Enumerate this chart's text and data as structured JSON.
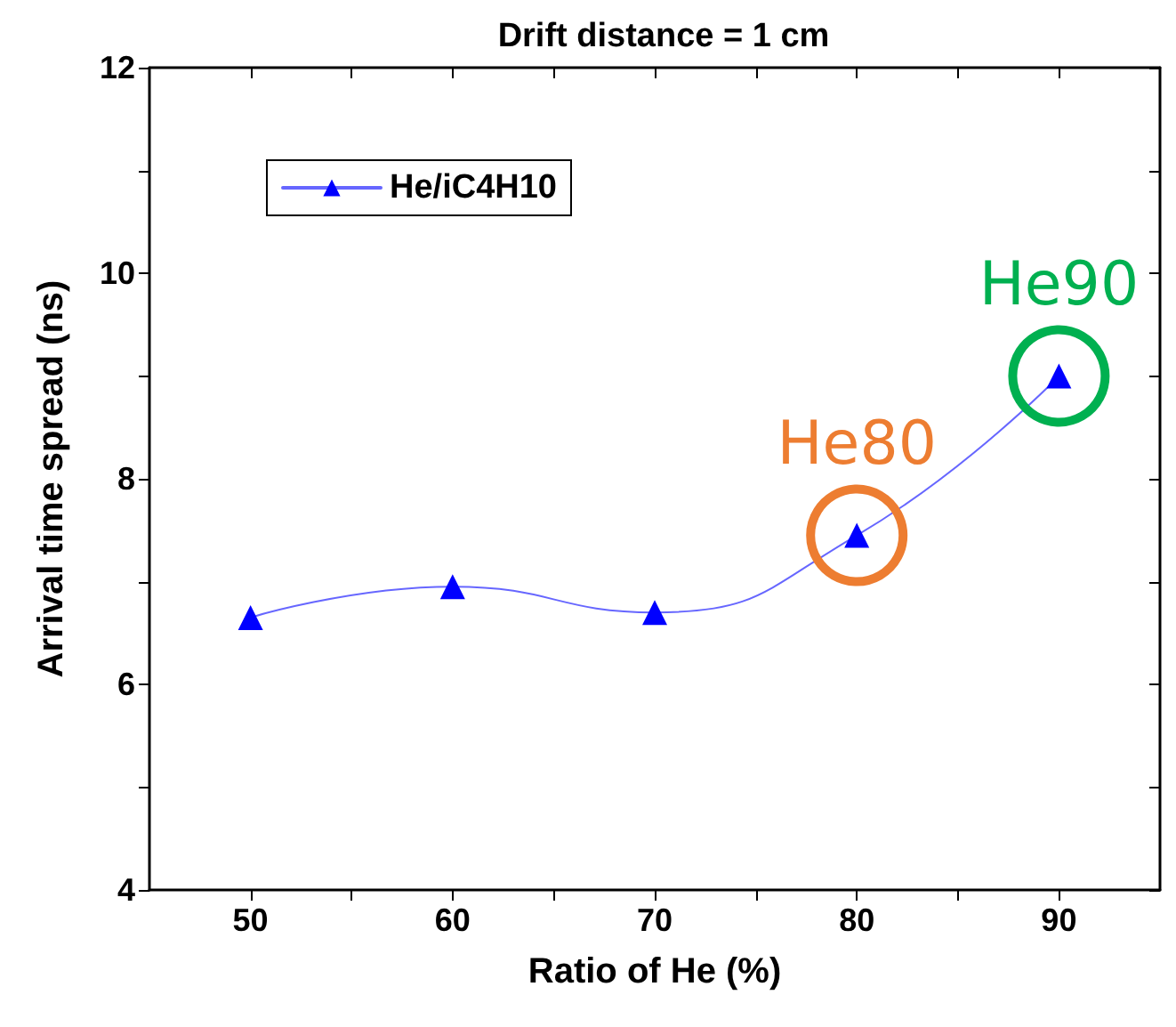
{
  "chart_data": {
    "type": "line",
    "title": "Drift distance = 1 cm",
    "xlabel": "Ratio of He (%)",
    "ylabel": "Arrival time spread (ns)",
    "x": [
      50,
      60,
      70,
      80,
      90
    ],
    "series": [
      {
        "name": "He/iC4H10",
        "color": "#0000ff",
        "values": [
          6.65,
          6.95,
          6.7,
          7.45,
          9.0
        ]
      }
    ],
    "xlim": [
      45,
      95
    ],
    "xticks": [
      50,
      {
        "value": 55,
        "label": null
      },
      60,
      {
        "value": 65,
        "label": null
      },
      70,
      {
        "value": 75,
        "label": null
      },
      80,
      {
        "value": 85,
        "label": null
      },
      90
    ],
    "ylim": [
      4,
      12
    ],
    "yticks": [
      4,
      {
        "value": 5,
        "label": null
      },
      6,
      {
        "value": 7,
        "label": null
      },
      8,
      {
        "value": 9,
        "label": null
      },
      10,
      {
        "value": 11,
        "label": null
      },
      12
    ],
    "annotations": [
      {
        "text": "He80",
        "x": 80,
        "y": 7.45
      },
      {
        "text": "He90",
        "x": 90,
        "y": 9.0
      }
    ],
    "grid": false,
    "legend": "top left",
    "marker": "triangle",
    "line_style": "solid"
  }
}
